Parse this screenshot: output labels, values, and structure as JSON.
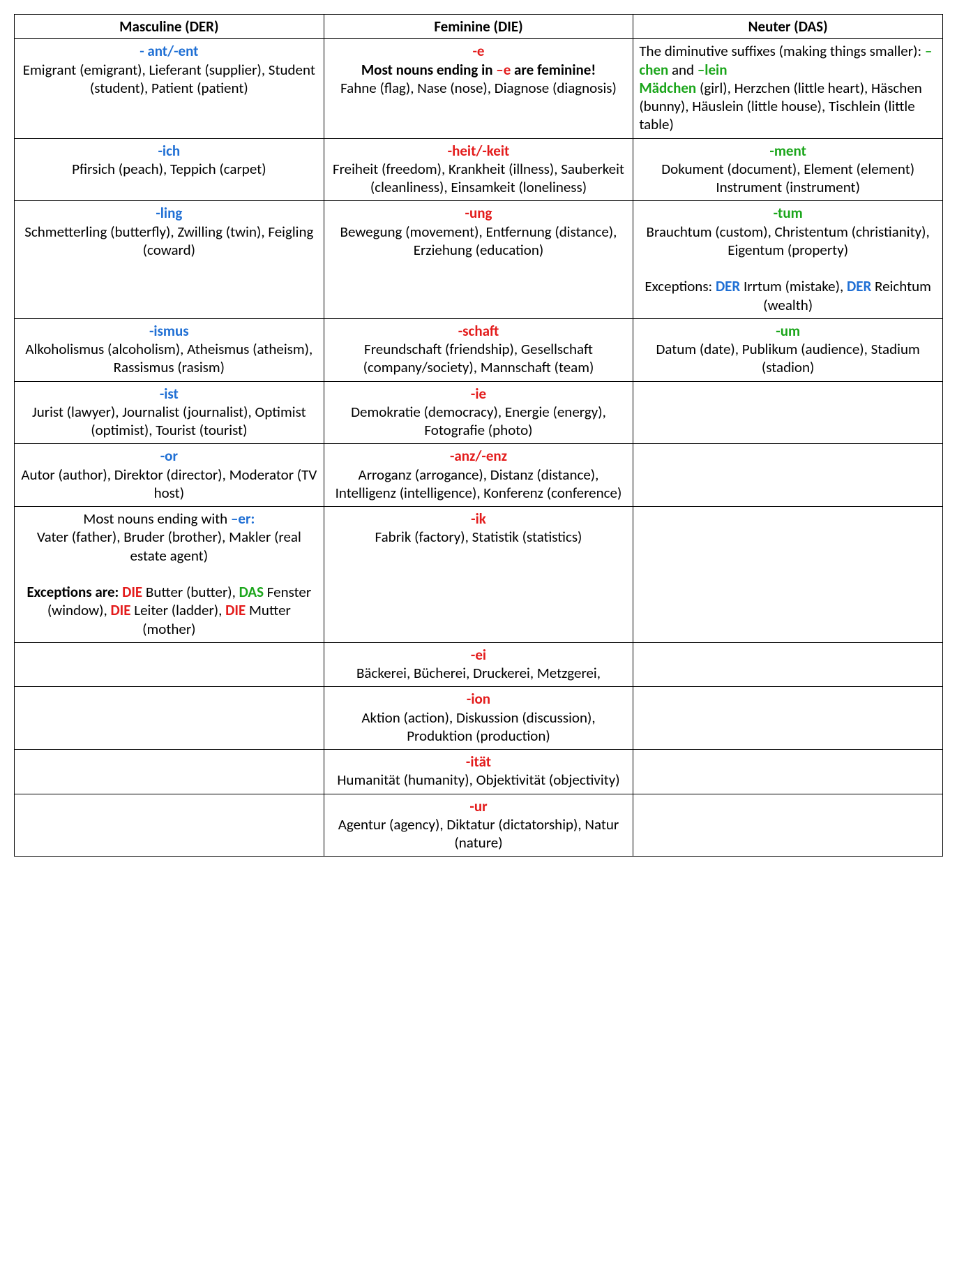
{
  "colors": {
    "masculine": "#1f6fd4",
    "feminine": "#e31b1b",
    "neuter": "#1aa51a",
    "text": "#000000",
    "border": "#000000",
    "background": "#ffffff"
  },
  "typography": {
    "font_family": "Calibri / sans-serif",
    "base_fontsize_pt": 16,
    "header_fontweight": "bold",
    "suffix_fontweight": "bold"
  },
  "table": {
    "columns": 3,
    "column_widths_pct": [
      33.3,
      33.3,
      33.4
    ],
    "headers": [
      "Masculine (DER)",
      "Feminine (DIE)",
      "Neuter (DAS)"
    ],
    "rows": [
      {
        "m": {
          "suffix": "- ant/-ent",
          "suffix_color": "masculine",
          "align": "center",
          "body": [
            {
              "t": "Emigrant (emigrant), Lieferant (supplier), Student (student), Patient (patient)"
            }
          ]
        },
        "f": {
          "suffix": "-e",
          "suffix_color": "feminine",
          "align": "center",
          "body": [
            {
              "t": "Most nouns ending in ",
              "b": true
            },
            {
              "t": "–e",
              "b": true,
              "color": "feminine"
            },
            {
              "t": " are feminine!",
              "b": true
            },
            {
              "t": "\nFahne (flag), Nase (nose), Diagnose (diagnosis)"
            }
          ]
        },
        "n": {
          "align": "left",
          "body": [
            {
              "t": "The diminutive suffixes (making things smaller): "
            },
            {
              "t": "–chen",
              "b": true,
              "color": "neuter"
            },
            {
              "t": " and "
            },
            {
              "t": "–lein",
              "b": true,
              "color": "neuter"
            },
            {
              "t": "\n"
            },
            {
              "t": "Mädchen",
              "b": true,
              "color": "neuter"
            },
            {
              "t": " (girl), Herzchen (little heart), Häschen (bunny), Häuslein (little house), Tischlein (little table)"
            }
          ]
        }
      },
      {
        "m": {
          "suffix": "-ich",
          "suffix_color": "masculine",
          "align": "center",
          "body": [
            {
              "t": "Pfirsich (peach), Teppich (carpet)"
            }
          ]
        },
        "f": {
          "suffix": "-heit/-keit",
          "suffix_color": "feminine",
          "align": "center",
          "body": [
            {
              "t": "Freiheit (freedom), Krankheit (illness), Sauberkeit (cleanliness), Einsamkeit (loneliness)"
            }
          ]
        },
        "n": {
          "suffix": "-ment",
          "suffix_color": "neuter",
          "align": "center",
          "body": [
            {
              "t": "Dokument (document), Element (element) Instrument (instrument)"
            }
          ]
        }
      },
      {
        "m": {
          "suffix": "-ling",
          "suffix_color": "masculine",
          "align": "center",
          "body": [
            {
              "t": "Schmetterling (butterfly), Zwilling (twin), Feigling (coward)"
            }
          ]
        },
        "f": {
          "suffix": "-ung",
          "suffix_color": "feminine",
          "align": "center",
          "body": [
            {
              "t": "Bewegung (movement), Entfernung (distance), Erziehung (education)"
            }
          ]
        },
        "n": {
          "suffix": "-tum",
          "suffix_color": "neuter",
          "align": "center",
          "body": [
            {
              "t": "Brauchtum (custom), Christentum (christianity), Eigentum (property)"
            },
            {
              "t": "\n\nExceptions: "
            },
            {
              "t": "DER",
              "b": true,
              "color": "masculine"
            },
            {
              "t": " Irrtum (mistake), "
            },
            {
              "t": "DER",
              "b": true,
              "color": "masculine"
            },
            {
              "t": " Reichtum (wealth)"
            }
          ]
        }
      },
      {
        "m": {
          "suffix": "-ismus",
          "suffix_color": "masculine",
          "align": "center",
          "body": [
            {
              "t": "Alkoholismus (alcoholism), Atheismus (atheism), Rassismus (rasism)"
            }
          ]
        },
        "f": {
          "suffix": "-schaft",
          "suffix_color": "feminine",
          "align": "center",
          "body": [
            {
              "t": "Freundschaft (friendship), Gesellschaft (company/society), Mannschaft (team)"
            }
          ]
        },
        "n": {
          "suffix": "-um",
          "suffix_color": "neuter",
          "align": "center",
          "body": [
            {
              "t": "Datum (date), Publikum (audience), Stadium (stadion)"
            }
          ]
        }
      },
      {
        "m": {
          "suffix": "-ist",
          "suffix_color": "masculine",
          "align": "center",
          "body": [
            {
              "t": "Jurist (lawyer), Journalist (journalist), Optimist (optimist), Tourist (tourist)"
            }
          ]
        },
        "f": {
          "suffix": "-ie",
          "suffix_color": "feminine",
          "align": "center",
          "body": [
            {
              "t": "Demokratie (democracy), Energie (energy), Fotografie (photo)"
            }
          ]
        },
        "n": {
          "empty": true
        }
      },
      {
        "m": {
          "suffix": "-or",
          "suffix_color": "masculine",
          "align": "center",
          "body": [
            {
              "t": "Autor (author), Direktor (director), Moderator (TV host)"
            }
          ]
        },
        "f": {
          "suffix": "-anz/-enz",
          "suffix_color": "feminine",
          "align": "center",
          "body": [
            {
              "t": "Arroganz (arrogance), Distanz (distance), Intelligenz (intelligence), Konferenz (conference)"
            }
          ]
        },
        "n": {
          "empty": true
        }
      },
      {
        "m": {
          "align": "center",
          "body": [
            {
              "t": "Most nouns ending with "
            },
            {
              "t": "–er:",
              "b": true,
              "color": "masculine"
            },
            {
              "t": "\nVater (father), Bruder (brother), Makler (real estate agent)"
            },
            {
              "t": "\n\n"
            },
            {
              "t": "Exceptions are: ",
              "b": true
            },
            {
              "t": "DIE",
              "b": true,
              "color": "feminine"
            },
            {
              "t": " Butter (butter), "
            },
            {
              "t": "DAS",
              "b": true,
              "color": "neuter"
            },
            {
              "t": " Fenster (window), "
            },
            {
              "t": "DIE",
              "b": true,
              "color": "feminine"
            },
            {
              "t": " Leiter (ladder), "
            },
            {
              "t": "DIE",
              "b": true,
              "color": "feminine"
            },
            {
              "t": " Mutter (mother)"
            }
          ]
        },
        "f": {
          "suffix": "-ik",
          "suffix_color": "feminine",
          "align": "center",
          "body": [
            {
              "t": "Fabrik (factory), Statistik (statistics)"
            }
          ]
        },
        "n": {
          "empty": true
        }
      },
      {
        "m": {
          "empty": true
        },
        "f": {
          "suffix": "-ei",
          "suffix_color": "feminine",
          "align": "center",
          "body": [
            {
              "t": "Bäckerei, Bücherei, Druckerei, Metzgerei,"
            }
          ]
        },
        "n": {
          "empty": true
        }
      },
      {
        "m": {
          "empty": true
        },
        "f": {
          "suffix": "-ion",
          "suffix_color": "feminine",
          "align": "center",
          "body": [
            {
              "t": "Aktion (action), Diskussion (discussion), Produktion (production)"
            }
          ]
        },
        "n": {
          "empty": true
        }
      },
      {
        "m": {
          "empty": true
        },
        "f": {
          "suffix": "-ität",
          "suffix_color": "feminine",
          "align": "center",
          "body": [
            {
              "t": "Humanität (humanity), Objektivität (objectivity)"
            }
          ]
        },
        "n": {
          "empty": true
        }
      },
      {
        "m": {
          "empty": true
        },
        "f": {
          "suffix": "-ur",
          "suffix_color": "feminine",
          "align": "center",
          "body": [
            {
              "t": "Agentur (agency), Diktatur (dictatorship), Natur (nature)"
            }
          ]
        },
        "n": {
          "empty": true
        }
      }
    ]
  }
}
